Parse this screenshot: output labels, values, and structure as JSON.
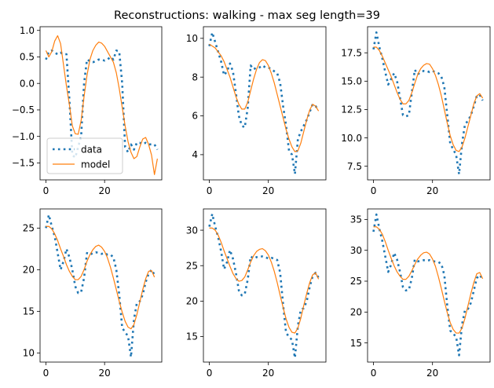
{
  "suptitle": "Reconstructions: walking - max seg length=39",
  "colors": {
    "data": "#1f77b4",
    "model": "#ff7f0e"
  },
  "legend": {
    "placement": "lower-left",
    "subplot": 0,
    "entries": [
      "data",
      "model"
    ]
  },
  "chart_data": [
    {
      "type": "line",
      "xlim": [
        -2,
        39.5
      ],
      "ylim": [
        -1.82,
        1.07
      ],
      "xticks": [
        0,
        20
      ],
      "yticks": [
        1.0,
        0.5,
        0.0,
        -0.5,
        -1.0,
        -1.5
      ],
      "ytick_labels": [
        "1.0",
        "0.5",
        "0.0",
        "−0.5",
        "−1.0",
        "−1.5"
      ],
      "series": [
        {
          "name": "data",
          "style": "dotted",
          "x": [
            0,
            1,
            2,
            3,
            4,
            5,
            6,
            7,
            8,
            9,
            10,
            11,
            12,
            13,
            14,
            15,
            16,
            17,
            18,
            19,
            20,
            21,
            22,
            23,
            24,
            25,
            26,
            27,
            28,
            29,
            30,
            31,
            32,
            33,
            34,
            35,
            36,
            37,
            38
          ],
          "y": [
            0.45,
            0.6,
            0.62,
            0.58,
            0.55,
            0.58,
            0.55,
            0.55,
            -0.3,
            -1.35,
            -1.4,
            -1.2,
            -1.0,
            0.0,
            0.45,
            0.42,
            0.4,
            0.42,
            0.45,
            0.45,
            0.43,
            0.45,
            0.5,
            0.45,
            0.62,
            0.6,
            0.0,
            -1.2,
            -1.3,
            -1.15,
            -1.25,
            -1.12,
            -1.12,
            -1.15,
            -1.12,
            -1.15,
            -1.15,
            -1.15,
            -1.25
          ]
        },
        {
          "name": "model",
          "style": "solid",
          "x": [
            0,
            1,
            2,
            3,
            4,
            5,
            6,
            7,
            8,
            9,
            10,
            11,
            12,
            13,
            14,
            15,
            16,
            17,
            18,
            19,
            20,
            21,
            22,
            23,
            24,
            25,
            26,
            27,
            28,
            29,
            30,
            31,
            32,
            33,
            34,
            35,
            36,
            37,
            38
          ],
          "y": [
            0.62,
            0.5,
            0.6,
            0.8,
            0.9,
            0.75,
            0.35,
            -0.05,
            -0.4,
            -0.8,
            -0.95,
            -0.96,
            -0.7,
            -0.25,
            0.15,
            0.45,
            0.62,
            0.72,
            0.78,
            0.76,
            0.7,
            0.6,
            0.5,
            0.4,
            0.2,
            -0.1,
            -0.45,
            -0.8,
            -1.1,
            -1.3,
            -1.42,
            -1.38,
            -1.2,
            -1.05,
            -1.02,
            -1.15,
            -1.35,
            -1.72,
            -1.42
          ]
        }
      ]
    },
    {
      "type": "line",
      "xlim": [
        -2,
        39.5
      ],
      "ylim": [
        2.7,
        10.6
      ],
      "xticks": [
        0,
        20
      ],
      "yticks": [
        4,
        6,
        8,
        10
      ],
      "ytick_labels": [
        "4",
        "6",
        "8",
        "10"
      ],
      "series": [
        {
          "name": "data",
          "style": "dotted",
          "x": [
            0,
            1,
            2,
            3,
            4,
            5,
            6,
            7,
            8,
            9,
            10,
            11,
            12,
            13,
            14,
            15,
            16,
            17,
            18,
            19,
            20,
            21,
            22,
            23,
            24,
            25,
            26,
            27,
            28,
            29,
            30,
            31,
            32,
            33,
            34,
            35,
            36,
            37
          ],
          "y": [
            9.6,
            10.3,
            9.8,
            9.3,
            8.8,
            8.1,
            8.3,
            8.7,
            8.3,
            7.2,
            6.0,
            5.5,
            5.4,
            6.4,
            8.6,
            8.4,
            8.5,
            8.5,
            8.6,
            8.5,
            8.5,
            8.4,
            8.3,
            8.2,
            7.7,
            6.5,
            5.5,
            4.2,
            4.0,
            3.0,
            4.8,
            5.2,
            5.5,
            5.8,
            6.2,
            6.6,
            6.5,
            6.3
          ]
        },
        {
          "name": "model",
          "style": "solid",
          "x": [
            0,
            1,
            2,
            3,
            4,
            5,
            6,
            7,
            8,
            9,
            10,
            11,
            12,
            13,
            14,
            15,
            16,
            17,
            18,
            19,
            20,
            21,
            22,
            23,
            24,
            25,
            26,
            27,
            28,
            29,
            30,
            31,
            32,
            33,
            34,
            35,
            36,
            37
          ],
          "y": [
            9.7,
            9.6,
            9.5,
            9.3,
            9.1,
            8.8,
            8.4,
            8.0,
            7.5,
            7.0,
            6.6,
            6.35,
            6.35,
            6.7,
            7.3,
            7.9,
            8.4,
            8.75,
            8.9,
            8.85,
            8.6,
            8.2,
            7.7,
            7.1,
            6.5,
            5.9,
            5.3,
            4.8,
            4.4,
            4.15,
            4.2,
            4.6,
            5.2,
            5.8,
            6.3,
            6.6,
            6.5,
            6.25
          ]
        }
      ]
    },
    {
      "type": "line",
      "xlim": [
        -2,
        39.5
      ],
      "ylim": [
        6.3,
        19.8
      ],
      "xticks": [
        0,
        20
      ],
      "yticks": [
        7.5,
        10.0,
        12.5,
        15.0,
        17.5
      ],
      "ytick_labels": [
        "7.5",
        "10.0",
        "12.5",
        "15.0",
        "17.5"
      ],
      "series": [
        {
          "name": "data",
          "style": "dotted",
          "x": [
            0,
            1,
            2,
            3,
            4,
            5,
            6,
            7,
            8,
            9,
            10,
            11,
            12,
            13,
            14,
            15,
            16,
            17,
            18,
            19,
            20,
            21,
            22,
            23,
            24,
            25,
            26,
            27,
            28,
            29,
            30,
            31,
            32,
            33,
            34,
            35,
            36,
            37
          ],
          "y": [
            17.8,
            19.3,
            18.0,
            17.0,
            15.8,
            14.7,
            15.2,
            15.7,
            15.0,
            13.5,
            12.0,
            11.9,
            12.0,
            14.0,
            16.0,
            15.6,
            15.8,
            15.9,
            15.9,
            15.8,
            15.9,
            15.8,
            15.7,
            15.4,
            14.5,
            12.0,
            9.5,
            9.0,
            8.5,
            6.8,
            9.5,
            11.2,
            11.5,
            12.0,
            12.8,
            13.7,
            13.8,
            13.3
          ]
        },
        {
          "name": "model",
          "style": "solid",
          "x": [
            0,
            1,
            2,
            3,
            4,
            5,
            6,
            7,
            8,
            9,
            10,
            11,
            12,
            13,
            14,
            15,
            16,
            17,
            18,
            19,
            20,
            21,
            22,
            23,
            24,
            25,
            26,
            27,
            28,
            29,
            30,
            31,
            32,
            33,
            34,
            35,
            36,
            37
          ],
          "y": [
            18.0,
            18.0,
            17.7,
            17.2,
            16.6,
            16.0,
            15.4,
            14.7,
            14.0,
            13.4,
            13.0,
            13.0,
            13.3,
            14.0,
            14.8,
            15.6,
            16.1,
            16.4,
            16.55,
            16.5,
            16.1,
            15.5,
            14.7,
            13.7,
            12.5,
            11.3,
            10.2,
            9.4,
            8.9,
            8.8,
            9.2,
            10.0,
            11.0,
            12.0,
            13.0,
            13.7,
            13.9,
            13.5
          ]
        }
      ]
    },
    {
      "type": "line",
      "xlim": [
        -2,
        39.5
      ],
      "ylim": [
        8.9,
        27.3
      ],
      "xticks": [
        0,
        20
      ],
      "yticks": [
        10,
        15,
        20,
        25
      ],
      "ytick_labels": [
        "10",
        "15",
        "20",
        "25"
      ],
      "series": [
        {
          "name": "data",
          "style": "dotted",
          "x": [
            0,
            1,
            2,
            3,
            4,
            5,
            6,
            7,
            8,
            9,
            10,
            11,
            12,
            13,
            14,
            15,
            16,
            17,
            18,
            19,
            20,
            21,
            22,
            23,
            24,
            25,
            26,
            27,
            28,
            29,
            30,
            31,
            32,
            33,
            34,
            35,
            36,
            37
          ],
          "y": [
            25.0,
            26.6,
            25.2,
            24.0,
            22.0,
            20.0,
            21.0,
            22.5,
            21.5,
            20.0,
            18.0,
            17.2,
            17.3,
            19.0,
            22.0,
            21.8,
            22.0,
            22.1,
            22.0,
            21.9,
            22.0,
            21.8,
            21.8,
            21.5,
            20.0,
            17.0,
            13.0,
            12.5,
            12.0,
            9.5,
            14.0,
            16.0,
            16.2,
            17.0,
            18.5,
            19.5,
            20.0,
            19.4
          ]
        },
        {
          "name": "model",
          "style": "solid",
          "x": [
            0,
            1,
            2,
            3,
            4,
            5,
            6,
            7,
            8,
            9,
            10,
            11,
            12,
            13,
            14,
            15,
            16,
            17,
            18,
            19,
            20,
            21,
            22,
            23,
            24,
            25,
            26,
            27,
            28,
            29,
            30,
            31,
            32,
            33,
            34,
            35,
            36,
            37
          ],
          "y": [
            25.2,
            25.2,
            24.9,
            24.3,
            23.5,
            22.5,
            21.6,
            20.6,
            19.8,
            19.2,
            18.8,
            18.8,
            19.2,
            20.0,
            21.0,
            21.8,
            22.4,
            22.8,
            22.95,
            22.7,
            22.2,
            21.4,
            20.3,
            19.0,
            17.6,
            16.2,
            14.9,
            13.8,
            13.1,
            12.9,
            13.4,
            14.6,
            16.1,
            17.6,
            18.9,
            19.8,
            19.9,
            19.1
          ]
        }
      ]
    },
    {
      "type": "line",
      "xlim": [
        -2,
        39.5
      ],
      "ylim": [
        11.4,
        33.0
      ],
      "xticks": [
        0,
        20
      ],
      "yticks": [
        15,
        20,
        25,
        30
      ],
      "ytick_labels": [
        "15",
        "20",
        "25",
        "30"
      ],
      "series": [
        {
          "name": "data",
          "style": "dotted",
          "x": [
            0,
            1,
            2,
            3,
            4,
            5,
            6,
            7,
            8,
            9,
            10,
            11,
            12,
            13,
            14,
            15,
            16,
            17,
            18,
            19,
            20,
            21,
            22,
            23,
            24,
            25,
            26,
            27,
            28,
            29,
            30,
            31,
            32,
            33,
            34,
            35,
            36,
            37
          ],
          "y": [
            30.5,
            32.3,
            30.5,
            29.0,
            27.0,
            24.5,
            25.5,
            27.2,
            26.0,
            24.0,
            21.5,
            20.8,
            21.0,
            23.0,
            26.3,
            26.0,
            26.2,
            26.3,
            26.3,
            26.2,
            26.0,
            26.1,
            26.0,
            25.8,
            24.0,
            19.5,
            15.5,
            15.0,
            14.5,
            12.0,
            16.5,
            18.8,
            19.0,
            20.0,
            22.0,
            23.5,
            24.0,
            23.3
          ]
        },
        {
          "name": "model",
          "style": "solid",
          "x": [
            0,
            1,
            2,
            3,
            4,
            5,
            6,
            7,
            8,
            9,
            10,
            11,
            12,
            13,
            14,
            15,
            16,
            17,
            18,
            19,
            20,
            21,
            22,
            23,
            24,
            25,
            26,
            27,
            28,
            29,
            30,
            31,
            32,
            33,
            34,
            35,
            36,
            37
          ],
          "y": [
            30.3,
            30.3,
            30.0,
            29.3,
            28.3,
            27.1,
            26.0,
            24.9,
            23.9,
            23.2,
            22.8,
            22.9,
            23.4,
            24.4,
            25.5,
            26.4,
            27.0,
            27.3,
            27.4,
            27.1,
            26.5,
            25.5,
            24.2,
            22.6,
            20.8,
            19.1,
            17.5,
            16.3,
            15.6,
            15.5,
            16.2,
            17.6,
            19.4,
            21.1,
            22.6,
            23.7,
            24.0,
            23.1
          ]
        }
      ]
    },
    {
      "type": "line",
      "xlim": [
        -2,
        39.5
      ],
      "ylim": [
        11.9,
        36.7
      ],
      "xticks": [
        0,
        20
      ],
      "yticks": [
        15,
        20,
        25,
        30,
        35
      ],
      "ytick_labels": [
        "15",
        "20",
        "25",
        "30",
        "35"
      ],
      "series": [
        {
          "name": "data",
          "style": "dotted",
          "x": [
            0,
            1,
            2,
            3,
            4,
            5,
            6,
            7,
            8,
            9,
            10,
            11,
            12,
            13,
            14,
            15,
            16,
            17,
            18,
            19,
            20,
            21,
            22,
            23,
            24,
            25,
            26,
            27,
            28,
            29,
            30,
            31,
            32,
            33,
            34,
            35,
            36,
            37
          ],
          "y": [
            33.0,
            35.8,
            33.5,
            31.5,
            29.0,
            26.5,
            27.7,
            29.6,
            28.5,
            26.5,
            24.0,
            23.5,
            23.6,
            25.5,
            28.5,
            28.2,
            28.3,
            28.4,
            28.3,
            28.4,
            28.2,
            28.2,
            28.1,
            27.8,
            26.0,
            21.0,
            17.0,
            16.5,
            16.0,
            13.0,
            18.0,
            20.3,
            20.5,
            21.5,
            23.5,
            25.5,
            26.0,
            25.3
          ]
        },
        {
          "name": "model",
          "style": "solid",
          "x": [
            0,
            1,
            2,
            3,
            4,
            5,
            6,
            7,
            8,
            9,
            10,
            11,
            12,
            13,
            14,
            15,
            16,
            17,
            18,
            19,
            20,
            21,
            22,
            23,
            24,
            25,
            26,
            27,
            28,
            29,
            30,
            31,
            32,
            33,
            34,
            35,
            36,
            37
          ],
          "y": [
            33.8,
            33.8,
            33.4,
            32.6,
            31.4,
            30.0,
            28.7,
            27.5,
            26.5,
            25.8,
            25.3,
            25.3,
            25.8,
            26.7,
            27.7,
            28.6,
            29.2,
            29.6,
            29.7,
            29.4,
            28.6,
            27.4,
            25.7,
            23.8,
            21.8,
            19.9,
            18.3,
            17.2,
            16.6,
            16.6,
            17.4,
            19.0,
            21.0,
            23.0,
            24.8,
            26.2,
            26.4,
            25.4
          ]
        }
      ]
    }
  ]
}
